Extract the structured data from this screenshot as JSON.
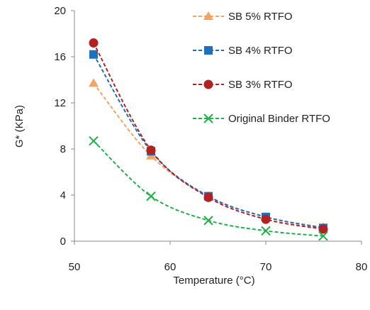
{
  "chart_data": {
    "type": "line",
    "xlabel": "Temperature (°C)",
    "ylabel": "G* (KPa)",
    "xlim": [
      50,
      80
    ],
    "ylim": [
      0,
      20
    ],
    "xticks": [
      "50",
      "60",
      "70",
      "80"
    ],
    "yticks": [
      "0",
      "4",
      "8",
      "12",
      "16",
      "20"
    ],
    "grid": false,
    "legend_position": "top-right",
    "series": [
      {
        "name": "SB 5% RTFO",
        "color": "#f4a460",
        "marker": "triangle",
        "x": [
          52,
          58,
          64,
          70,
          76
        ],
        "y": [
          13.7,
          7.4,
          3.9,
          2.1,
          1.2
        ]
      },
      {
        "name": "SB 4% RTFO",
        "color": "#1f6fbf",
        "marker": "square",
        "x": [
          52,
          58,
          64,
          70,
          76
        ],
        "y": [
          16.2,
          7.8,
          3.9,
          2.1,
          1.15
        ]
      },
      {
        "name": "SB 3% RTFO",
        "color": "#b22222",
        "marker": "circle",
        "x": [
          52,
          58,
          64,
          70,
          76
        ],
        "y": [
          17.2,
          7.9,
          3.8,
          1.9,
          1.05
        ]
      },
      {
        "name": "Original Binder RTFO",
        "color": "#22b04a",
        "marker": "x",
        "x": [
          52,
          58,
          64,
          70,
          76
        ],
        "y": [
          8.7,
          3.9,
          1.8,
          0.9,
          0.45
        ]
      }
    ]
  }
}
